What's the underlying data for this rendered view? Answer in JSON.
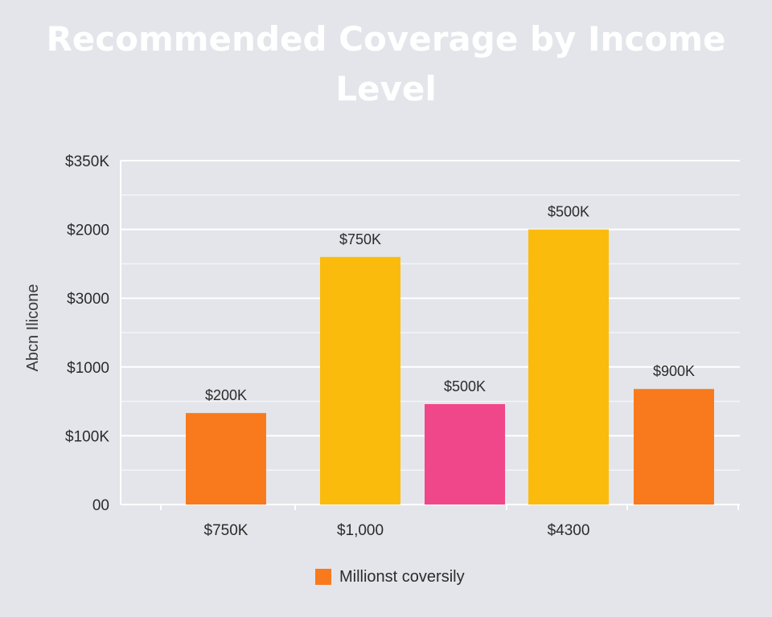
{
  "chart_data": {
    "type": "bar",
    "title": "Recommended Coverage by Income Level",
    "ylabel": "Abcn Ilicone",
    "xlabel": "",
    "ytick_labels": [
      "00",
      "$100K",
      "$1000",
      "$3000",
      "$2000",
      "$350K"
    ],
    "xtick_labels": [
      "$750K",
      "$1,000",
      "$4300"
    ],
    "ylim": [
      0,
      5
    ],
    "grid": true,
    "legend": {
      "position": "bottom-center"
    },
    "series": [
      {
        "name": "Millionst coversily",
        "color": "#f97a1c",
        "bars": [
          {
            "value": 1.33,
            "label": "$200K",
            "color": "#f97a1c"
          },
          {
            "value": 3.6,
            "label": "$750K",
            "color": "#fbbb0c"
          },
          {
            "value": 1.46,
            "label": "$500K",
            "color": "#f0468a"
          },
          {
            "value": 4.0,
            "label": "$500K",
            "color": "#fbbb0c"
          },
          {
            "value": 1.68,
            "label": "$900K",
            "color": "#f97a1c"
          }
        ]
      }
    ]
  }
}
